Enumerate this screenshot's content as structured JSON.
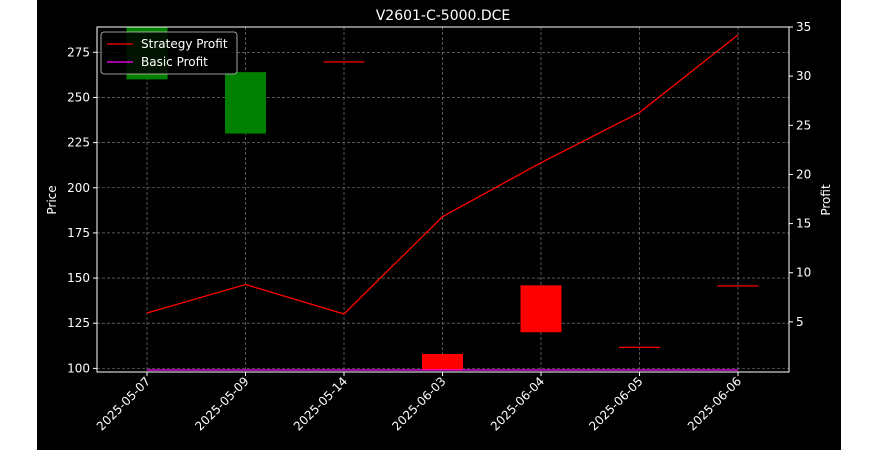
{
  "chart_data": {
    "type": "candlestick-line",
    "title": "V2601-C-5000.DCE",
    "xlabel": "",
    "ylabel_left": "Price",
    "ylabel_right": "Profit",
    "categories": [
      "2025-05-07",
      "2025-05-09",
      "2025-05-14",
      "2025-06-03",
      "2025-06-04",
      "2025-06-05",
      "2025-06-06"
    ],
    "ylim_left": [
      98,
      289
    ],
    "yticks_left": [
      100,
      125,
      150,
      175,
      200,
      225,
      250,
      275
    ],
    "ylim_right": [
      -0.1,
      35
    ],
    "yticks_right": [
      5,
      10,
      15,
      20,
      25,
      30,
      35
    ],
    "grid": true,
    "legend_position": "top-left",
    "candles": [
      {
        "date": "2025-05-07",
        "open": 260,
        "close": 289,
        "color": "green"
      },
      {
        "date": "2025-05-09",
        "open": 230,
        "close": 264,
        "color": "green"
      },
      {
        "date": "2025-05-14",
        "open": 270,
        "close": 270,
        "color": "red"
      },
      {
        "date": "2025-06-03",
        "open": 108,
        "close": 99,
        "color": "red"
      },
      {
        "date": "2025-06-04",
        "open": 146,
        "close": 120,
        "color": "red"
      },
      {
        "date": "2025-06-05",
        "open": 112,
        "close": 112,
        "color": "red"
      },
      {
        "date": "2025-06-06",
        "open": 146,
        "close": 146,
        "color": "red"
      }
    ],
    "series": [
      {
        "name": "Strategy Profit",
        "color": "#ff0000",
        "values": [
          5.9,
          8.8,
          5.8,
          15.7,
          21.2,
          26.3,
          34.2
        ]
      },
      {
        "name": "Basic Profit",
        "color": "#ff00ff",
        "values": [
          0.1,
          0.1,
          0.1,
          0.1,
          0.1,
          0.1,
          0.1
        ]
      }
    ]
  }
}
